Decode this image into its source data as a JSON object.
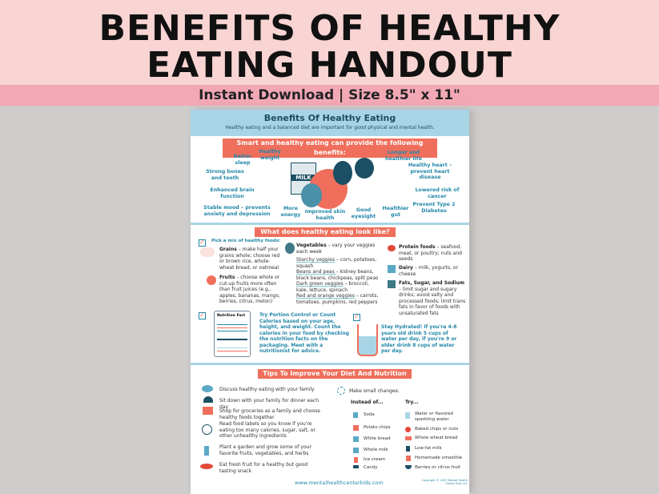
{
  "banner": {
    "title_line1": "BENEFITS OF HEALTHY",
    "title_line2": "EATING HANDOUT",
    "subtitle": "Instant Download  |  Size 8.5\" x 11\""
  },
  "colors": {
    "pink": "#f8d4d3",
    "band": "#f3a8b6",
    "accent": "#ef6f5c",
    "teal": "#2387a8",
    "header_blue": "#a8d5e6"
  },
  "handout": {
    "title": "Benefits Of Healthy Eating",
    "intro": "Healthy eating and a balanced diet are important for good physical and mental health.",
    "benefits_heading": "Smart and healthy eating can provide the following benefits:",
    "milk_label": "MILK",
    "benefits": [
      "Better sleep",
      "Healthy weight",
      "Strong bones and teeth",
      "Enhanced brain function",
      "Stable mood – prevents anxiety and depression",
      "More energy",
      "Improved skin health",
      "Good eyesight",
      "Healthier gut",
      "Longer and healthier life",
      "Healthy heart – prevent heart disease",
      "Lowered risk of cancer",
      "Prevent Type 2 Diabetes"
    ],
    "look_heading": "What does healthy eating look like?",
    "pick_mix": "Pick a mix of healthy foods:",
    "groups": [
      {
        "name": "Grains",
        "text": " – make half your grains whole; choose red or brown rice, whole-wheat bread, or oatmeal"
      },
      {
        "name": "Fruits",
        "text": " – choose whole or cut-up fruits more often than fruit juices (e.g., apples, bananas, mango, berries, citrus, melon)"
      },
      {
        "name": "Vegetables",
        "text": " – vary your veggies each week"
      },
      {
        "name": "Protein foods",
        "text": " – seafood, meat, or poultry; nuts and seeds"
      },
      {
        "name": "Dairy",
        "text": " – milk, yogurts, or cheese"
      },
      {
        "name": "Fats, Sugar, and Sodium",
        "text": " – limit sugar and sugary drinks; avoid salty and processed foods; limit trans fats in favor of foods with unsaturated fats"
      }
    ],
    "veggies": [
      {
        "name": "Starchy veggies",
        "text": " – corn, potatoes, squash"
      },
      {
        "name": "Beans and peas ",
        "text": " – kidney beans, black beans, chickpeas, split peas"
      },
      {
        "name": "Dark green veggies",
        "text": " – broccoli, kale, lettuce, spinach"
      },
      {
        "name": "Red and orange veggies",
        "text": " – carrots, tomatoes, pumpkins, red peppers"
      }
    ],
    "nutrition_fact_label": "Nutrition Fact",
    "portion": "Try Portion Control or Count Calories based on your age, height, and weight.  Count the calories in your food by checking the nutrition facts on the packaging. Meet with a nutritionist for advice.",
    "hydrate": "Stay Hydrated! If you're 4-8 years old drink 5 cups of water per day, if you're 9 or older drink 8 cups of water per day.",
    "tips_heading": "Tips To Improve Your Diet And Nutrition",
    "tips": [
      "Discuss healthy eating with your family",
      "Sit down with your family for dinner each day",
      "Shop for groceries as a family and choose healthy foods together",
      "Read food labels so you know if you're eating too many calories, sugar, salt, or other unhealthy ingredients",
      "Plant a garden and grow some of your favorite fruits, vegetables, and herbs",
      "Eat fresh fruit for a healthy but good tasting snack"
    ],
    "small_changes": "Make small changes:",
    "instead_heading": "Instead of...",
    "try_heading": "Try...",
    "instead": [
      "Soda",
      "Potato chips",
      "White bread",
      "Whole milk",
      "Ice cream",
      "Candy"
    ],
    "try": [
      "Water or flavored sparkling water",
      "Baked chips or nuts",
      "Whole wheat bread",
      "Low-fat milk",
      "Homemade smoothie",
      "Berries or citrus fruit"
    ],
    "website": "www.mentalhealthcenterkids.com",
    "copyright": "Copyright © 2023 Mental Health Center Kids LLC"
  }
}
